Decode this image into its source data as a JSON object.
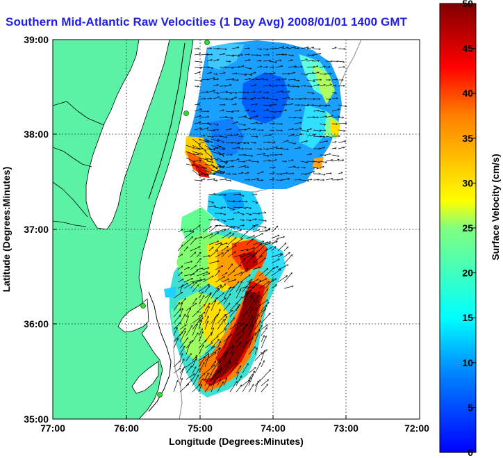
{
  "title": "Southern Mid-Atlantic Raw Velocities (1 Day Avg) 2008/01/01 1400 GMT",
  "x_axis": {
    "label": "Longitude (Degrees:Minutes)",
    "ticks": [
      "77:00",
      "76:00",
      "75:00",
      "74:00",
      "73:00",
      "72:00"
    ]
  },
  "y_axis": {
    "label": "Latitude (Degrees:Minutes)",
    "ticks": [
      "39:00",
      "38:00",
      "37:00",
      "36:00",
      "35:00"
    ]
  },
  "colorbar": {
    "label": "Surface Velocity (cm/s)",
    "ticks": [
      "50",
      "45",
      "40",
      "35",
      "30",
      "25",
      "20",
      "15",
      "10",
      "5",
      "0"
    ],
    "range": [
      0,
      50
    ],
    "colormap": "jet"
  },
  "colors": {
    "title": "#1e1ee6",
    "land": "#5cf2a6",
    "coast": "#000000",
    "bathymetry": "#999999",
    "station": "#33dd33"
  },
  "map": {
    "lon_range": [
      -77,
      -72
    ],
    "lat_range": [
      35,
      39
    ],
    "grid": true,
    "legend_placement": "right"
  }
}
